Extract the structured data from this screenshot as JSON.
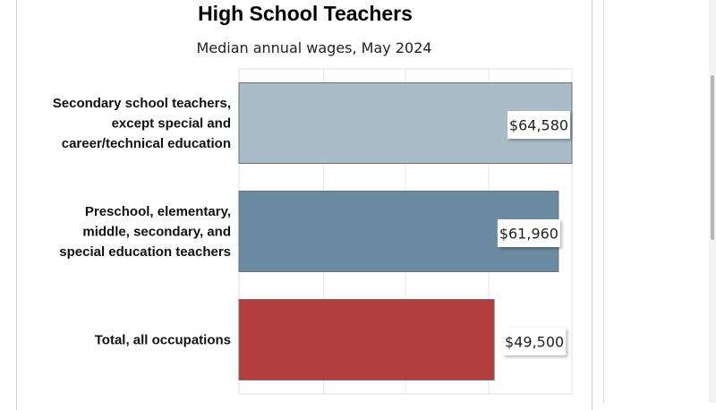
{
  "chart_data": {
    "type": "bar",
    "orientation": "horizontal",
    "title": "High School Teachers",
    "subtitle": "Median annual wages, May 2024",
    "categories": [
      [
        "Secondary school teachers,",
        "except special and",
        "career/technical education"
      ],
      [
        "Preschool, elementary,",
        "middle, secondary, and",
        "special education teachers"
      ],
      [
        "Total, all occupations"
      ]
    ],
    "values": [
      64580,
      61960,
      49500
    ],
    "value_labels": [
      "$64,580",
      "$61,960",
      "$49,500"
    ],
    "colors": [
      "#a9bcc8",
      "#6b8ba2",
      "#b33e3e"
    ],
    "xlim": [
      0,
      64580
    ],
    "grid": true,
    "legend": "none"
  }
}
